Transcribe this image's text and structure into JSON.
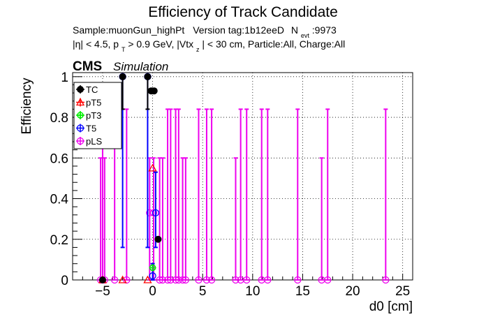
{
  "chart_data": {
    "type": "scatter",
    "title": "Efficiency of Track Candidate",
    "subtitle_line1": {
      "sample": "Sample:muonGun_highPt",
      "version": "Version tag:1b12eeD",
      "nevt_prefix": "N",
      "nevt_sub": "evt",
      "nevt_value": ":9973"
    },
    "subtitle_line2": {
      "eta": "|η| < 4.5, p",
      "pt_sub": "T",
      "pt_cut": " > 0.9 GeV, |Vtx",
      "vtx_sub": "z",
      "rest": "| < 30 cm, Particle:All, Charge:All"
    },
    "cms_label": "CMS",
    "cms_extra": "Simulation",
    "xlabel": "d0 [cm]",
    "ylabel": "Efficiency",
    "xlim": [
      -8,
      26
    ],
    "ylim": [
      0,
      1.02
    ],
    "xticks": [
      -5,
      0,
      5,
      10,
      15,
      20,
      25
    ],
    "yticks": [
      0,
      0.2,
      0.4,
      0.6,
      0.8,
      1
    ],
    "grid": true,
    "legend_position": "top-left",
    "series": [
      {
        "name": "TC",
        "color": "#000000",
        "marker": "filled-circle",
        "points": [
          {
            "x": -5.0,
            "y": 0,
            "lo": 0,
            "hi": 0
          },
          {
            "x": -3.0,
            "y": 1.0,
            "lo": 0.84,
            "hi": 1.0
          },
          {
            "x": -0.5,
            "y": 1.0,
            "lo": 0.84,
            "hi": 1.0
          },
          {
            "x": -0.15,
            "y": 0.93,
            "lo": 0.93,
            "hi": 0.93
          },
          {
            "x": 0.15,
            "y": 0.93,
            "lo": 0.93,
            "hi": 0.93
          },
          {
            "x": 0.55,
            "y": 0.2,
            "lo": 0.2,
            "hi": 0.2
          }
        ]
      },
      {
        "name": "pT5",
        "color": "#ff0000",
        "marker": "open-triangle",
        "points": [
          {
            "x": -5.0,
            "y": 0,
            "lo": 0,
            "hi": 0
          },
          {
            "x": -3.0,
            "y": 0,
            "lo": 0,
            "hi": 0
          },
          {
            "x": -0.5,
            "y": 0,
            "lo": 0,
            "hi": 0
          },
          {
            "x": 0.0,
            "y": 0.55,
            "lo": 0.55,
            "hi": 0.55
          }
        ]
      },
      {
        "name": "pT3",
        "color": "#00ee00",
        "marker": "open-circle-cross",
        "points": [
          {
            "x": 0.0,
            "y": 0.06,
            "lo": 0.06,
            "hi": 0.06
          }
        ]
      },
      {
        "name": "T5",
        "color": "#0000ff",
        "marker": "open-circle",
        "points": [
          {
            "x": -3.0,
            "y": 1.0,
            "lo": 0.16,
            "hi": 1.0
          },
          {
            "x": -0.5,
            "y": 1.0,
            "lo": 0.16,
            "hi": 1.0
          },
          {
            "x": 0.0,
            "y": 0.02,
            "lo": 0.0,
            "hi": 0.08
          },
          {
            "x": 0.3,
            "y": 0.33,
            "lo": 0.16,
            "hi": 0.53
          }
        ]
      },
      {
        "name": "pLS",
        "color": "#ee00ee",
        "marker": "open-circle",
        "points": [
          {
            "x": -5.2,
            "y": 0,
            "lo": 0,
            "hi": 0.6
          },
          {
            "x": -5.0,
            "y": 0,
            "lo": 0,
            "hi": 0.84
          },
          {
            "x": -4.8,
            "y": 0,
            "lo": 0,
            "hi": 0.6
          },
          {
            "x": -3.8,
            "y": 0,
            "lo": 0,
            "hi": 0.84
          },
          {
            "x": -2.6,
            "y": 0,
            "lo": 0,
            "hi": 0.84
          },
          {
            "x": -0.3,
            "y": 0.33,
            "lo": 0.0,
            "hi": 0.6
          },
          {
            "x": 0.1,
            "y": 0.33,
            "lo": 0.0,
            "hi": 0.6
          },
          {
            "x": 0.7,
            "y": 0,
            "lo": 0,
            "hi": 0.6
          },
          {
            "x": 1.0,
            "y": 0,
            "lo": 0,
            "hi": 0.6
          },
          {
            "x": 1.5,
            "y": 0,
            "lo": 0,
            "hi": 0.84
          },
          {
            "x": 1.8,
            "y": 0,
            "lo": 0,
            "hi": 0.84
          },
          {
            "x": 2.3,
            "y": 0,
            "lo": 0,
            "hi": 0.84
          },
          {
            "x": 2.6,
            "y": 0,
            "lo": 0,
            "hi": 0.84
          },
          {
            "x": 3.0,
            "y": 0,
            "lo": 0,
            "hi": 0.6
          },
          {
            "x": 3.3,
            "y": 0,
            "lo": 0,
            "hi": 0.6
          },
          {
            "x": 4.6,
            "y": 0,
            "lo": 0,
            "hi": 0.84
          },
          {
            "x": 5.4,
            "y": 0,
            "lo": 0,
            "hi": 0.84
          },
          {
            "x": 5.9,
            "y": 0,
            "lo": 0,
            "hi": 0.84
          },
          {
            "x": 8.3,
            "y": 0,
            "lo": 0,
            "hi": 0.6
          },
          {
            "x": 8.8,
            "y": 0,
            "lo": 0,
            "hi": 0.84
          },
          {
            "x": 9.4,
            "y": 0,
            "lo": 0,
            "hi": 0.84
          },
          {
            "x": 10.9,
            "y": 0,
            "lo": 0,
            "hi": 0.84
          },
          {
            "x": 11.5,
            "y": 0,
            "lo": 0,
            "hi": 0.84
          },
          {
            "x": 14.5,
            "y": 0,
            "lo": 0,
            "hi": 0.84
          },
          {
            "x": 16.9,
            "y": 0,
            "lo": 0,
            "hi": 0.6
          },
          {
            "x": 17.5,
            "y": 0,
            "lo": 0,
            "hi": 0.84
          },
          {
            "x": 23.3,
            "y": 0,
            "lo": 0,
            "hi": 0.84
          }
        ]
      }
    ]
  }
}
